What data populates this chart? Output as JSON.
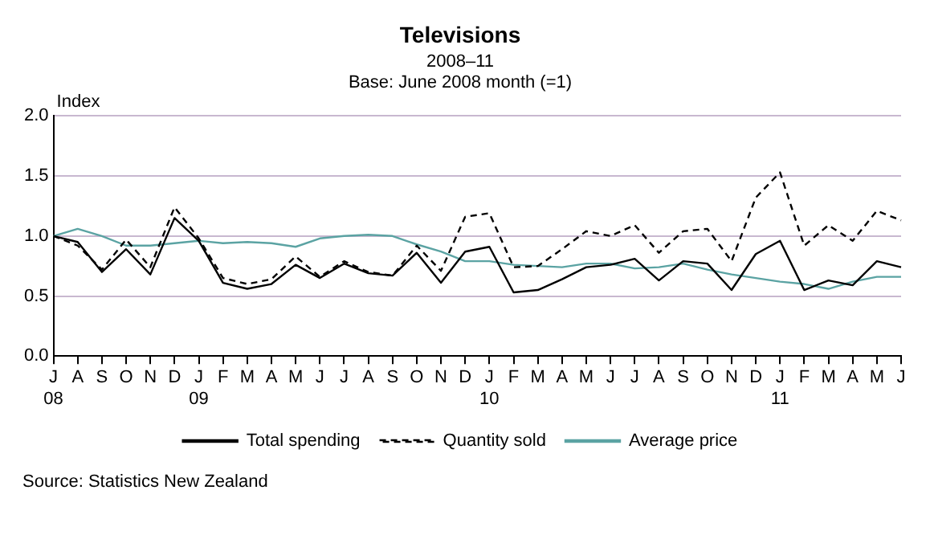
{
  "chart_data": {
    "type": "line",
    "title": "Televisions",
    "subtitle": "2008–11\nBase: June 2008 month (=1)",
    "ylabel": "Index",
    "categories": [
      "J\n08",
      "A",
      "S",
      "O",
      "N",
      "D",
      "J\n09",
      "F",
      "M",
      "A",
      "M",
      "J",
      "J",
      "A",
      "S",
      "O",
      "N",
      "D",
      "J\n10",
      "F",
      "M",
      "A",
      "M",
      "J",
      "J",
      "A",
      "S",
      "O",
      "N",
      "D",
      "J\n11",
      "F",
      "M",
      "A",
      "M",
      "J"
    ],
    "series": [
      {
        "name": "Total spending",
        "color": "#000000",
        "line_style": "solid",
        "values": [
          1.0,
          0.95,
          0.7,
          0.89,
          0.68,
          1.15,
          0.96,
          0.61,
          0.56,
          0.6,
          0.76,
          0.65,
          0.77,
          0.69,
          0.67,
          0.86,
          0.61,
          0.87,
          0.91,
          0.53,
          0.55,
          0.64,
          0.74,
          0.76,
          0.81,
          0.63,
          0.79,
          0.77,
          0.55,
          0.85,
          0.96,
          0.55,
          0.63,
          0.59,
          0.79,
          0.74
        ]
      },
      {
        "name": "Quantity sold",
        "color": "#000000",
        "line_style": "dashed",
        "values": [
          1.0,
          0.92,
          0.72,
          0.97,
          0.74,
          1.24,
          0.98,
          0.65,
          0.6,
          0.64,
          0.83,
          0.66,
          0.79,
          0.7,
          0.67,
          0.92,
          0.71,
          1.16,
          1.19,
          0.74,
          0.75,
          0.89,
          1.04,
          1.0,
          1.09,
          0.86,
          1.04,
          1.06,
          0.79,
          1.32,
          1.53,
          0.92,
          1.09,
          0.96,
          1.21,
          1.13
        ]
      },
      {
        "name": "Average price",
        "color": "#5ba3a3",
        "line_style": "solid",
        "values": [
          1.0,
          1.06,
          1.0,
          0.92,
          0.92,
          0.94,
          0.96,
          0.94,
          0.95,
          0.94,
          0.91,
          0.98,
          1.0,
          1.01,
          1.0,
          0.93,
          0.87,
          0.79,
          0.79,
          0.76,
          0.75,
          0.74,
          0.77,
          0.77,
          0.73,
          0.74,
          0.77,
          0.72,
          0.68,
          0.65,
          0.62,
          0.6,
          0.56,
          0.62,
          0.66,
          0.66
        ]
      }
    ],
    "ylim": [
      0,
      2
    ],
    "yticks": [
      {
        "value": 0,
        "label": "0.0"
      },
      {
        "value": 0.5,
        "label": "0.5"
      },
      {
        "value": 1,
        "label": "1.0"
      },
      {
        "value": 1.5,
        "label": "1.5"
      },
      {
        "value": 2,
        "label": "2.0"
      }
    ],
    "grid": "y",
    "legend": "bottom",
    "marker": "none",
    "annotations": [
      "Source: Statistics New Zealand"
    ]
  }
}
